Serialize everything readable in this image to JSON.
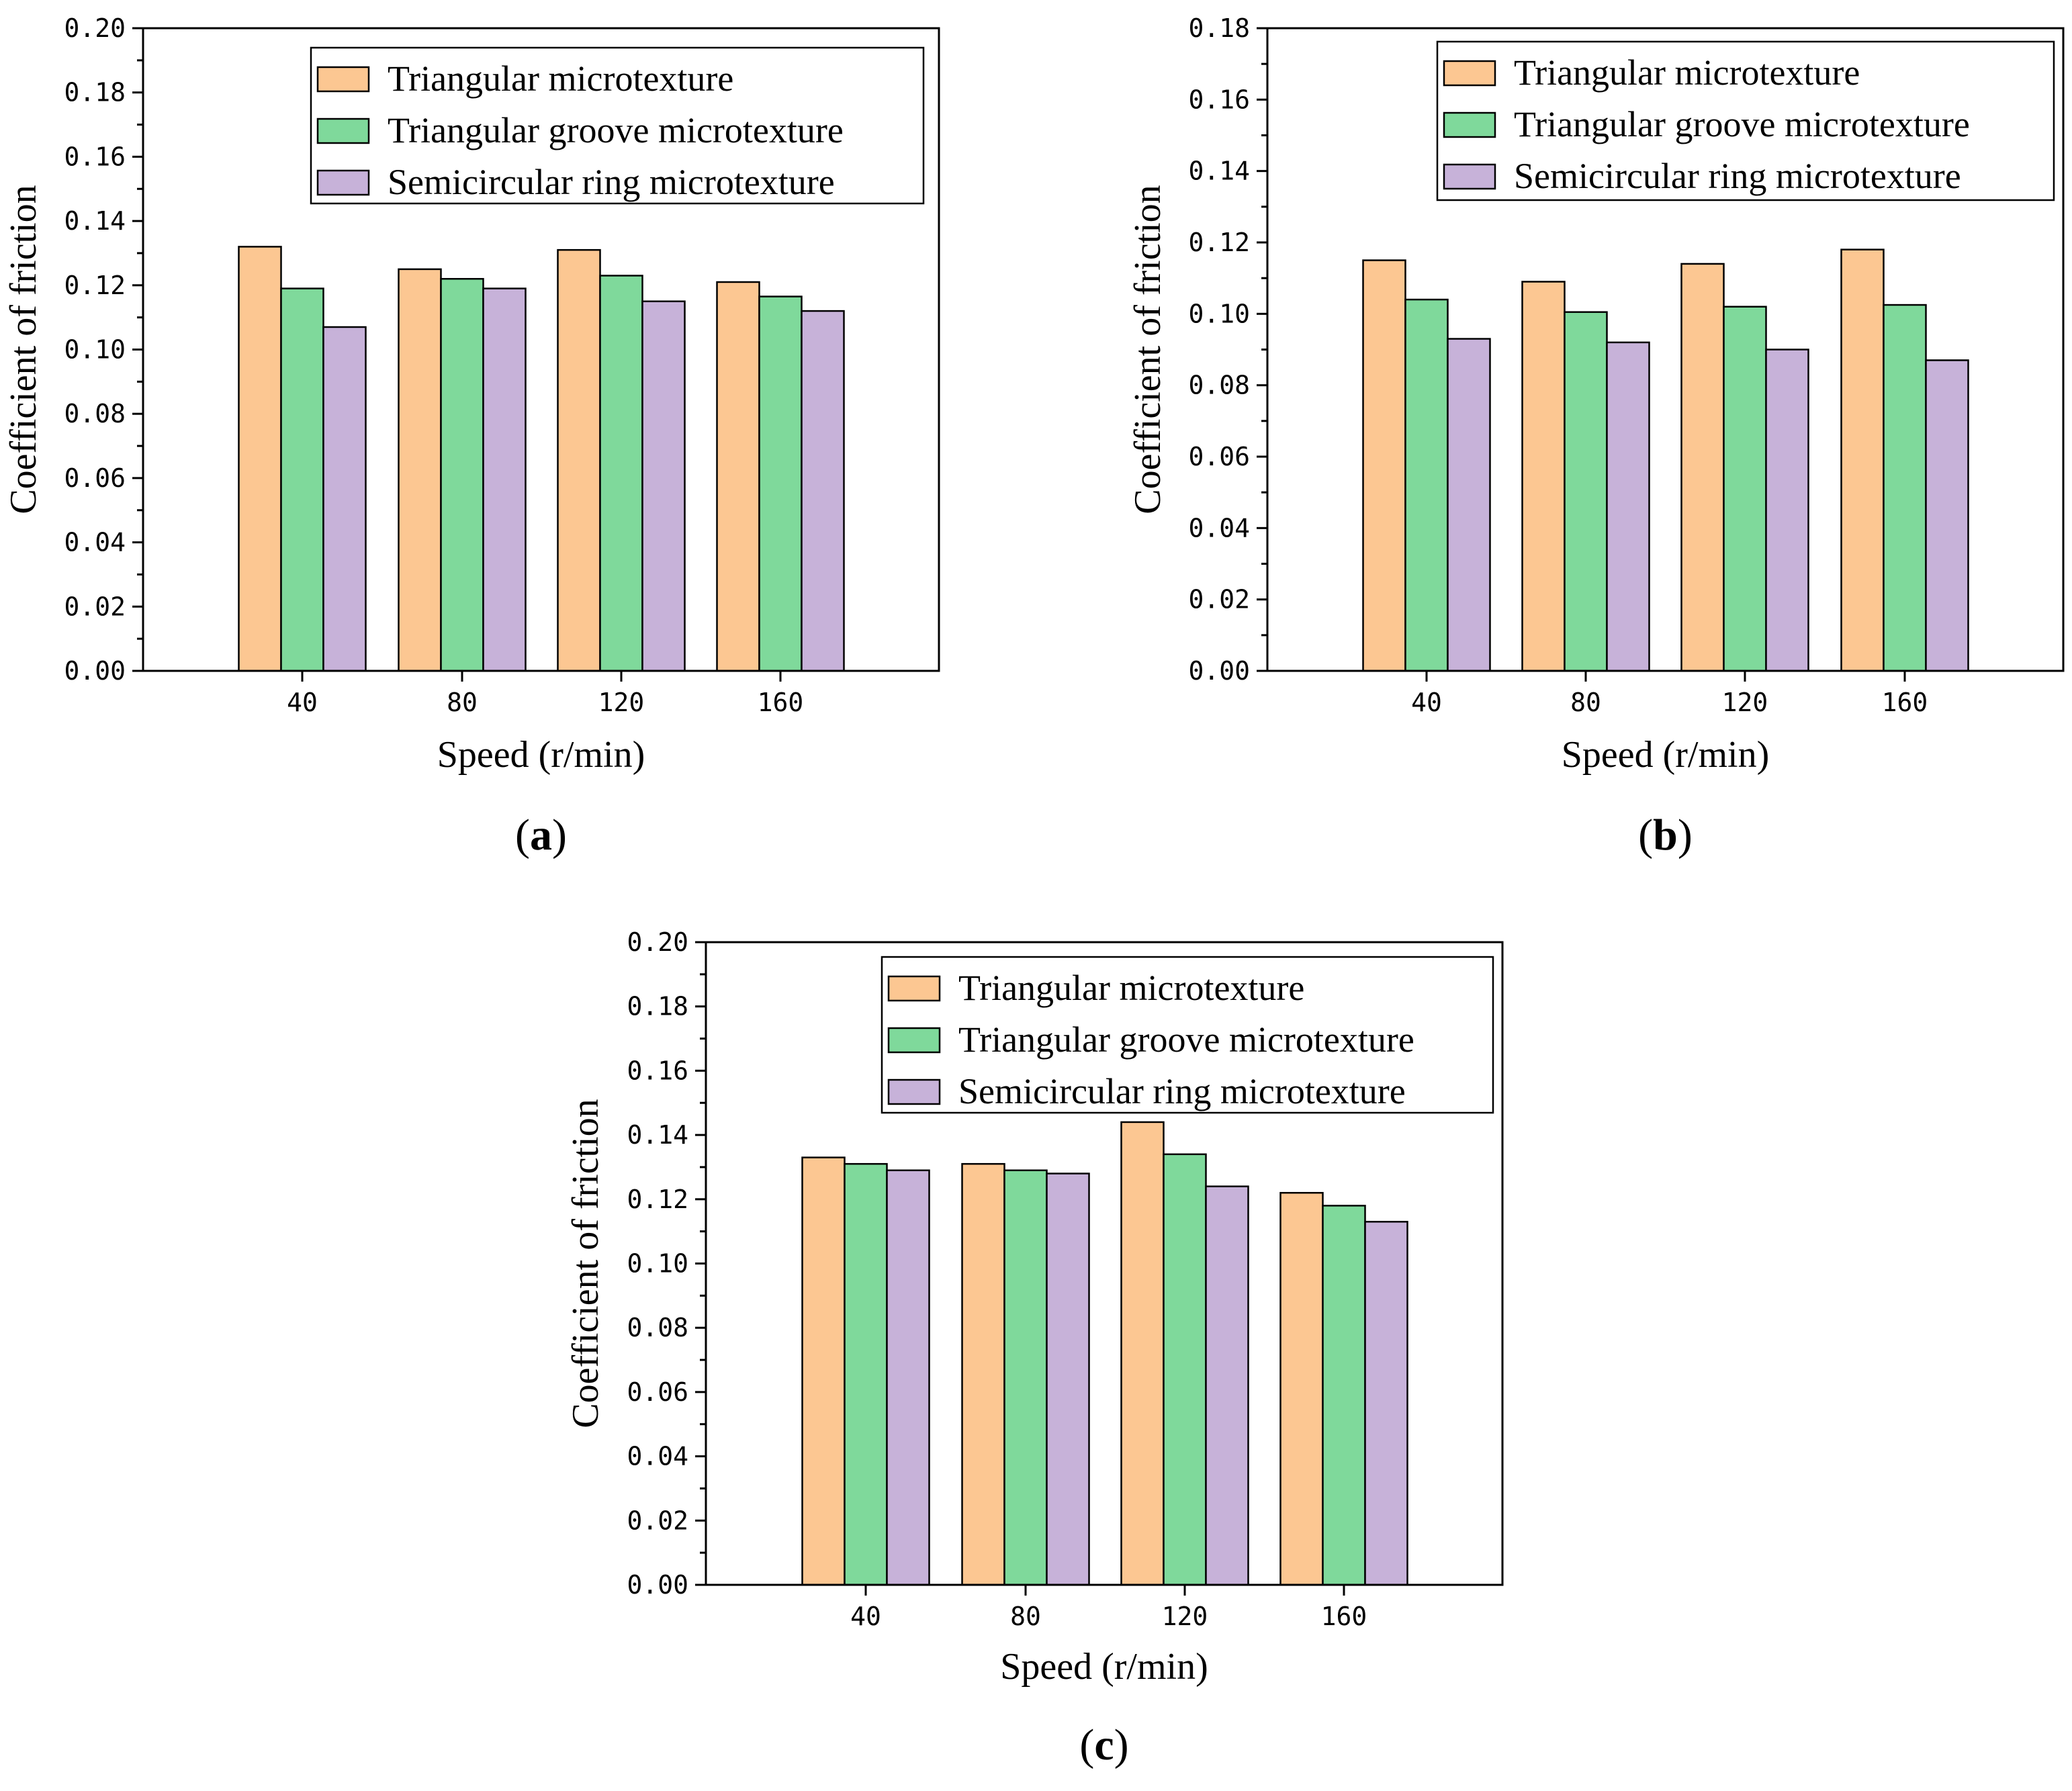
{
  "figure": {
    "colors": {
      "triangular": "#fcc792",
      "triangular_groove": "#7fd99b",
      "semicircular_ring": "#c7b2d9",
      "outline": "#000000"
    }
  },
  "chart_data": [
    {
      "type": "bar",
      "panel": "a",
      "panel_label": "(a)",
      "panel_letter": "a",
      "title": "",
      "xlabel": "Speed (r/min)",
      "ylabel": "Coefficient of friction",
      "categories": [
        "40",
        "80",
        "120",
        "160"
      ],
      "ylim": [
        0,
        0.2
      ],
      "yticks": [
        "0.00",
        "0.02",
        "0.04",
        "0.06",
        "0.08",
        "0.10",
        "0.12",
        "0.14",
        "0.16",
        "0.18",
        "0.20"
      ],
      "legend_position": "top-right",
      "grid": false,
      "series": [
        {
          "name": "Triangular microtexture",
          "color": "#fcc792",
          "values": [
            0.132,
            0.125,
            0.131,
            0.121
          ]
        },
        {
          "name": "Triangular groove microtexture",
          "color": "#7fd99b",
          "values": [
            0.119,
            0.122,
            0.123,
            0.1165
          ]
        },
        {
          "name": "Semicircular ring microtexture",
          "color": "#c7b2d9",
          "values": [
            0.107,
            0.119,
            0.115,
            0.112
          ]
        }
      ]
    },
    {
      "type": "bar",
      "panel": "b",
      "panel_label": "(b)",
      "panel_letter": "b",
      "title": "",
      "xlabel": "Speed (r/min)",
      "ylabel": "Coefficient of friction",
      "categories": [
        "40",
        "80",
        "120",
        "160"
      ],
      "ylim": [
        0,
        0.18
      ],
      "yticks": [
        "0.00",
        "0.02",
        "0.04",
        "0.06",
        "0.08",
        "0.10",
        "0.12",
        "0.14",
        "0.16",
        "0.18"
      ],
      "legend_position": "top-right",
      "grid": false,
      "series": [
        {
          "name": "Triangular microtexture",
          "color": "#fcc792",
          "values": [
            0.115,
            0.109,
            0.114,
            0.118
          ]
        },
        {
          "name": "Triangular groove microtexture",
          "color": "#7fd99b",
          "values": [
            0.104,
            0.1005,
            0.102,
            0.1025
          ]
        },
        {
          "name": "Semicircular ring microtexture",
          "color": "#c7b2d9",
          "values": [
            0.093,
            0.092,
            0.09,
            0.087
          ]
        }
      ]
    },
    {
      "type": "bar",
      "panel": "c",
      "panel_label": "(c)",
      "panel_letter": "c",
      "title": "",
      "xlabel": "Speed (r/min)",
      "ylabel": "Coefficient of friction",
      "categories": [
        "40",
        "80",
        "120",
        "160"
      ],
      "ylim": [
        0,
        0.2
      ],
      "yticks": [
        "0.00",
        "0.02",
        "0.04",
        "0.06",
        "0.08",
        "0.10",
        "0.12",
        "0.14",
        "0.16",
        "0.18",
        "0.20"
      ],
      "legend_position": "top-right",
      "grid": false,
      "series": [
        {
          "name": "Triangular microtexture",
          "color": "#fcc792",
          "values": [
            0.133,
            0.131,
            0.144,
            0.122
          ]
        },
        {
          "name": "Triangular groove microtexture",
          "color": "#7fd99b",
          "values": [
            0.131,
            0.129,
            0.134,
            0.118
          ]
        },
        {
          "name": "Semicircular ring microtexture",
          "color": "#c7b2d9",
          "values": [
            0.129,
            0.128,
            0.124,
            0.113
          ]
        }
      ]
    }
  ]
}
